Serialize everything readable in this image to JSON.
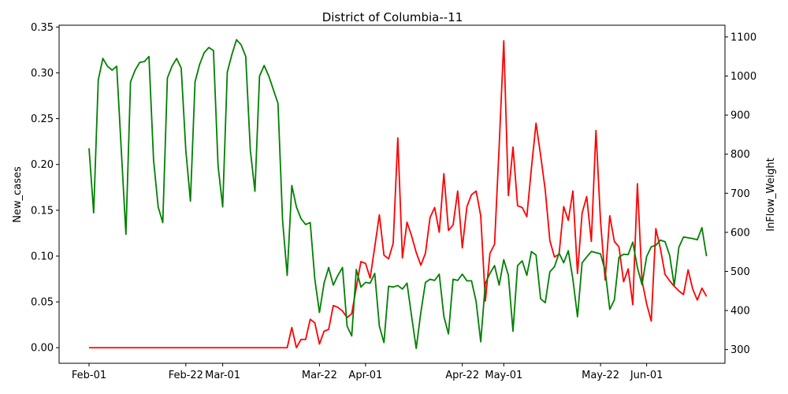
{
  "chart_data": {
    "type": "line",
    "title": "District of Columbia--11",
    "xlabel": "",
    "ylabel_left": "New_cases",
    "ylabel_right": "InFlow_Weight",
    "x_ticks": [
      {
        "day": 0,
        "label": "Feb-01"
      },
      {
        "day": 21,
        "label": "Feb-22"
      },
      {
        "day": 29,
        "label": "Mar-01"
      },
      {
        "day": 50,
        "label": "Mar-22"
      },
      {
        "day": 60,
        "label": "Apr-01"
      },
      {
        "day": 81,
        "label": "Apr-22"
      },
      {
        "day": 90,
        "label": "May-01"
      },
      {
        "day": 111,
        "label": "May-22"
      },
      {
        "day": 121,
        "label": "Jun-01"
      }
    ],
    "xlim": [
      -6.5,
      138
    ],
    "ylim_left": [
      -0.017,
      0.352
    ],
    "ylim_right": [
      265,
      1130
    ],
    "y_ticks_left": [
      0.0,
      0.05,
      0.1,
      0.15,
      0.2,
      0.25,
      0.3,
      0.35
    ],
    "y_ticks_left_labels": [
      "0.00",
      "0.05",
      "0.10",
      "0.15",
      "0.20",
      "0.25",
      "0.30",
      "0.35"
    ],
    "y_ticks_right": [
      300,
      400,
      500,
      600,
      700,
      800,
      900,
      1000,
      1100
    ],
    "y_ticks_right_labels": [
      "300",
      "400",
      "500",
      "600",
      "700",
      "800",
      "900",
      "1000",
      "1100"
    ],
    "grid": false,
    "series": [
      {
        "axis": "left",
        "color": "#ff0000",
        "points": [
          [
            0,
            0
          ],
          [
            43,
            0
          ],
          [
            44,
            0.022
          ],
          [
            45,
            0
          ],
          [
            46,
            0.009
          ],
          [
            47,
            0.009
          ],
          [
            48,
            0.031
          ],
          [
            49,
            0.027
          ],
          [
            50,
            0.004
          ],
          [
            51,
            0.018
          ],
          [
            52,
            0.02
          ],
          [
            53,
            0.046
          ],
          [
            54,
            0.044
          ],
          [
            55,
            0.04
          ],
          [
            56,
            0.033
          ],
          [
            57,
            0.037
          ],
          [
            58,
            0.066
          ],
          [
            59,
            0.094
          ],
          [
            60,
            0.092
          ],
          [
            61,
            0.076
          ],
          [
            62,
            0.11
          ],
          [
            63,
            0.145
          ],
          [
            64,
            0.101
          ],
          [
            65,
            0.097
          ],
          [
            66,
            0.114
          ],
          [
            67,
            0.229
          ],
          [
            68,
            0.098
          ],
          [
            69,
            0.137
          ],
          [
            70,
            0.122
          ],
          [
            71,
            0.104
          ],
          [
            72,
            0.09
          ],
          [
            73,
            0.103
          ],
          [
            74,
            0.142
          ],
          [
            75,
            0.153
          ],
          [
            76,
            0.126
          ],
          [
            77,
            0.19
          ],
          [
            78,
            0.128
          ],
          [
            79,
            0.134
          ],
          [
            80,
            0.171
          ],
          [
            81,
            0.109
          ],
          [
            82,
            0.154
          ],
          [
            83,
            0.167
          ],
          [
            84,
            0.171
          ],
          [
            85,
            0.144
          ],
          [
            86,
            0.051
          ],
          [
            87,
            0.103
          ],
          [
            88,
            0.113
          ],
          [
            89,
            0.22
          ],
          [
            90,
            0.335
          ],
          [
            91,
            0.166
          ],
          [
            92,
            0.219
          ],
          [
            93,
            0.155
          ],
          [
            94,
            0.153
          ],
          [
            95,
            0.143
          ],
          [
            96,
            0.196
          ],
          [
            97,
            0.245
          ],
          [
            98,
            0.21
          ],
          [
            99,
            0.172
          ],
          [
            100,
            0.117
          ],
          [
            101,
            0.099
          ],
          [
            102,
            0.102
          ],
          [
            103,
            0.154
          ],
          [
            104,
            0.139
          ],
          [
            105,
            0.171
          ],
          [
            106,
            0.081
          ],
          [
            107,
            0.147
          ],
          [
            108,
            0.165
          ],
          [
            109,
            0.116
          ],
          [
            110,
            0.237
          ],
          [
            111,
            0.138
          ],
          [
            112,
            0.074
          ],
          [
            113,
            0.144
          ],
          [
            114,
            0.116
          ],
          [
            115,
            0.11
          ],
          [
            116,
            0.072
          ],
          [
            117,
            0.086
          ],
          [
            118,
            0.047
          ],
          [
            119,
            0.179
          ],
          [
            120,
            0.073
          ],
          [
            121,
            0.048
          ],
          [
            122,
            0.029
          ],
          [
            123,
            0.13
          ],
          [
            124,
            0.108
          ],
          [
            125,
            0.08
          ],
          [
            126,
            0.073
          ],
          [
            127,
            0.067
          ],
          [
            128,
            0.062
          ],
          [
            129,
            0.058
          ],
          [
            130,
            0.085
          ],
          [
            131,
            0.064
          ],
          [
            132,
            0.052
          ],
          [
            133,
            0.065
          ],
          [
            134,
            0.056
          ]
        ]
      },
      {
        "axis": "right",
        "color": "#008000",
        "points": [
          [
            0,
            815
          ],
          [
            1,
            650
          ],
          [
            2,
            990
          ],
          [
            3,
            1045
          ],
          [
            4,
            1025
          ],
          [
            5,
            1015
          ],
          [
            6,
            1025
          ],
          [
            7,
            810
          ],
          [
            8,
            595
          ],
          [
            9,
            985
          ],
          [
            10,
            1015
          ],
          [
            11,
            1035
          ],
          [
            12,
            1037
          ],
          [
            13,
            1050
          ],
          [
            14,
            785
          ],
          [
            15,
            665
          ],
          [
            16,
            625
          ],
          [
            17,
            995
          ],
          [
            18,
            1025
          ],
          [
            19,
            1045
          ],
          [
            20,
            1020
          ],
          [
            21,
            810
          ],
          [
            22,
            680
          ],
          [
            23,
            985
          ],
          [
            24,
            1030
          ],
          [
            25,
            1060
          ],
          [
            26,
            1073
          ],
          [
            27,
            1065
          ],
          [
            28,
            770
          ],
          [
            29,
            665
          ],
          [
            30,
            1010
          ],
          [
            31,
            1055
          ],
          [
            32,
            1093
          ],
          [
            33,
            1080
          ],
          [
            34,
            1050
          ],
          [
            35,
            810
          ],
          [
            36,
            705
          ],
          [
            37,
            1000
          ],
          [
            38,
            1027
          ],
          [
            39,
            1000
          ],
          [
            40,
            965
          ],
          [
            41,
            930
          ],
          [
            42,
            630
          ],
          [
            43,
            490
          ],
          [
            44,
            720
          ],
          [
            45,
            665
          ],
          [
            46,
            635
          ],
          [
            47,
            620
          ],
          [
            48,
            625
          ],
          [
            49,
            480
          ],
          [
            50,
            395
          ],
          [
            51,
            470
          ],
          [
            52,
            510
          ],
          [
            53,
            465
          ],
          [
            54,
            490
          ],
          [
            55,
            510
          ],
          [
            56,
            360
          ],
          [
            57,
            335
          ],
          [
            58,
            505
          ],
          [
            59,
            460
          ],
          [
            60,
            472
          ],
          [
            61,
            470
          ],
          [
            62,
            495
          ],
          [
            63,
            360
          ],
          [
            64,
            318
          ],
          [
            65,
            462
          ],
          [
            66,
            460
          ],
          [
            67,
            464
          ],
          [
            68,
            455
          ],
          [
            69,
            470
          ],
          [
            70,
            385
          ],
          [
            71,
            303
          ],
          [
            72,
            395
          ],
          [
            73,
            472
          ],
          [
            74,
            480
          ],
          [
            75,
            477
          ],
          [
            76,
            493
          ],
          [
            77,
            385
          ],
          [
            78,
            340
          ],
          [
            79,
            480
          ],
          [
            80,
            477
          ],
          [
            81,
            493
          ],
          [
            82,
            476
          ],
          [
            83,
            476
          ],
          [
            84,
            423
          ],
          [
            85,
            320
          ],
          [
            86,
            470
          ],
          [
            87,
            495
          ],
          [
            88,
            515
          ],
          [
            89,
            465
          ],
          [
            90,
            530
          ],
          [
            91,
            490
          ],
          [
            92,
            347
          ],
          [
            93,
            515
          ],
          [
            94,
            527
          ],
          [
            95,
            490
          ],
          [
            96,
            551
          ],
          [
            97,
            542
          ],
          [
            98,
            430
          ],
          [
            99,
            420
          ],
          [
            100,
            499
          ],
          [
            101,
            512
          ],
          [
            102,
            547
          ],
          [
            103,
            522
          ],
          [
            104,
            553
          ],
          [
            105,
            480
          ],
          [
            106,
            384
          ],
          [
            107,
            522
          ],
          [
            108,
            537
          ],
          [
            109,
            551
          ],
          [
            110,
            548
          ],
          [
            111,
            545
          ],
          [
            112,
            502
          ],
          [
            113,
            403
          ],
          [
            114,
            427
          ],
          [
            115,
            536
          ],
          [
            116,
            544
          ],
          [
            117,
            543
          ],
          [
            118,
            575
          ],
          [
            119,
            510
          ],
          [
            120,
            466
          ],
          [
            121,
            538
          ],
          [
            122,
            563
          ],
          [
            123,
            567
          ],
          [
            124,
            580
          ],
          [
            125,
            576
          ],
          [
            126,
            541
          ],
          [
            127,
            464
          ],
          [
            128,
            562
          ],
          [
            129,
            588
          ],
          [
            130,
            586
          ],
          [
            131,
            584
          ],
          [
            132,
            581
          ],
          [
            133,
            612
          ],
          [
            134,
            539
          ]
        ]
      }
    ]
  }
}
